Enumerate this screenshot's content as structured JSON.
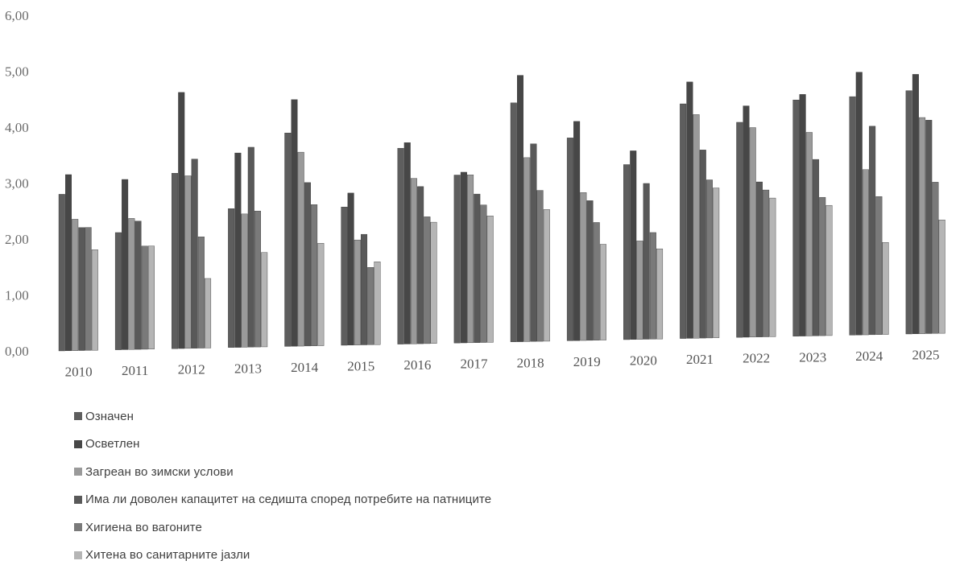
{
  "chart_data": {
    "type": "bar",
    "title": "",
    "xlabel": "",
    "ylabel": "",
    "ylim": [
      0,
      6
    ],
    "yticks": [
      "0,00",
      "1,00",
      "2,00",
      "3,00",
      "4,00",
      "5,00",
      "6,00"
    ],
    "grid": false,
    "legend_position": "bottom",
    "categories": [
      "2010",
      "2011",
      "2012",
      "2013",
      "2014",
      "2015",
      "2016",
      "2017",
      "2018",
      "2019",
      "2020",
      "2021",
      "2022",
      "2023",
      "2024",
      "2025"
    ],
    "series": [
      {
        "name": "Означен",
        "color": "#5e5e5e",
        "values": [
          2.8,
          2.1,
          3.15,
          2.5,
          3.85,
          2.5,
          3.55,
          3.05,
          4.35,
          3.7,
          3.2,
          4.3,
          3.95,
          4.35,
          4.4,
          4.5
        ]
      },
      {
        "name": "Осветлен",
        "color": "#474747",
        "values": [
          3.15,
          3.05,
          4.6,
          3.5,
          4.45,
          2.75,
          3.65,
          3.1,
          4.85,
          4.0,
          3.45,
          4.7,
          4.25,
          4.45,
          4.85,
          4.8
        ]
      },
      {
        "name": "Загреан во зимски услови",
        "color": "#9a9a9a",
        "values": [
          2.35,
          2.35,
          3.1,
          2.4,
          3.5,
          1.9,
          3.0,
          3.05,
          3.35,
          2.7,
          1.8,
          4.1,
          3.85,
          3.75,
          3.05,
          4.0
        ]
      },
      {
        "name": "Има ли доволен капацитет на седишта според потребите на патниците",
        "color": "#595959",
        "values": [
          2.2,
          2.3,
          3.4,
          3.6,
          2.95,
          2.0,
          2.85,
          2.7,
          3.6,
          2.55,
          2.85,
          3.45,
          2.85,
          3.25,
          3.85,
          3.95
        ]
      },
      {
        "name": "Хигиена во вагоните",
        "color": "#7a7a7a",
        "values": [
          2.2,
          1.85,
          2.0,
          2.45,
          2.55,
          1.4,
          2.3,
          2.5,
          2.75,
          2.15,
          1.95,
          2.9,
          2.7,
          2.55,
          2.55,
          2.8
        ]
      },
      {
        "name": "Хитена во санитарните јазли",
        "color": "#b5b5b5",
        "values": [
          1.8,
          1.85,
          1.25,
          1.7,
          1.85,
          1.5,
          2.2,
          2.3,
          2.4,
          1.75,
          1.65,
          2.75,
          2.55,
          2.4,
          1.7,
          2.1
        ]
      }
    ]
  }
}
